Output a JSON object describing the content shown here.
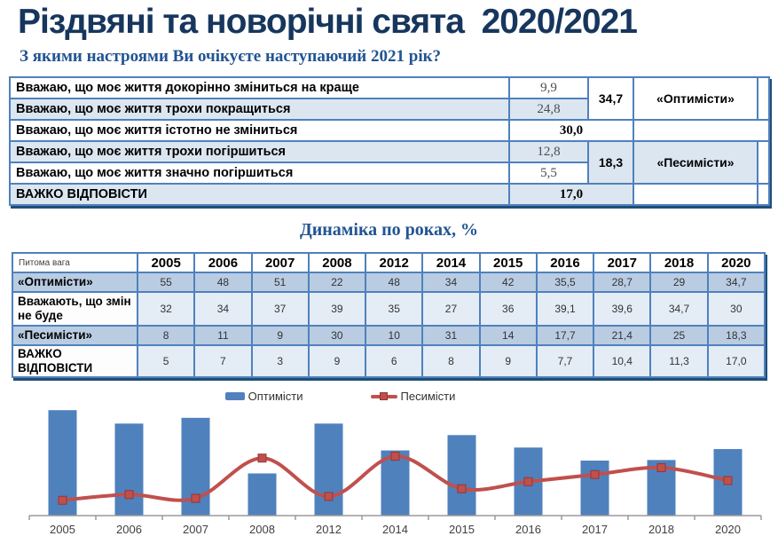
{
  "page": {
    "title": "Різдвяні та новорічні свята  2020/2021",
    "subtitle": "З якими настроями Ви очікуєте наступаючий 2021 рік?"
  },
  "mood_table": {
    "rows": [
      {
        "label": "Вважаю, що моє життя докорінно зміниться на краще",
        "value": "9,9"
      },
      {
        "label": "Вважаю, що моє життя трохи покращиться",
        "value": "24,8"
      },
      {
        "label": "Вважаю, що моє життя істотно не зміниться",
        "value": "30,0"
      },
      {
        "label": "Вважаю, що моє життя трохи погіршиться",
        "value": "12,8"
      },
      {
        "label": "Вважаю, що моє життя значно погіршиться",
        "value": "5,5"
      },
      {
        "label": "ВАЖКО ВІДПОВІСТИ",
        "value": "17,0"
      }
    ],
    "groups": [
      {
        "total": "34,7",
        "name": "«Оптимісти»"
      },
      {
        "total": "18,3",
        "name": "«Песимісти»"
      }
    ]
  },
  "dynamics": {
    "title": "Динаміка по роках, %",
    "corner_label": "Питома вага",
    "years": [
      "2005",
      "2006",
      "2007",
      "2008",
      "2012",
      "2014",
      "2015",
      "2016",
      "2017",
      "2018",
      "2020"
    ],
    "rows": [
      {
        "label": "«Оптимісти»",
        "values": [
          "55",
          "48",
          "51",
          "22",
          "48",
          "34",
          "42",
          "35,5",
          "28,7",
          "29",
          "34,7"
        ]
      },
      {
        "label": "Вважають, що змін не буде",
        "values": [
          "32",
          "34",
          "37",
          "39",
          "35",
          "27",
          "36",
          "39,1",
          "39,6",
          "34,7",
          "30"
        ]
      },
      {
        "label": "«Песимісти»",
        "values": [
          "8",
          "11",
          "9",
          "30",
          "10",
          "31",
          "14",
          "17,7",
          "21,4",
          "25",
          "18,3"
        ]
      },
      {
        "label": "ВАЖКО ВІДПОВІСТИ",
        "values": [
          "5",
          "7",
          "3",
          "9",
          "6",
          "8",
          "9",
          "7,7",
          "10,4",
          "11,3",
          "17,0"
        ]
      }
    ]
  },
  "chart_data": {
    "type": "bar",
    "subtype": "bar-and-line-combo",
    "categories": [
      "2005",
      "2006",
      "2007",
      "2008",
      "2012",
      "2014",
      "2015",
      "2016",
      "2017",
      "2018",
      "2020"
    ],
    "series": [
      {
        "name": "Оптимісти",
        "type": "bar",
        "color": "#4f81bd",
        "values": [
          55,
          48,
          51,
          22,
          48,
          34,
          42,
          35.5,
          28.7,
          29,
          34.7
        ]
      },
      {
        "name": "Песимісти",
        "type": "line",
        "color": "#c0504d",
        "marker": "square",
        "values": [
          8,
          11,
          9,
          30,
          10,
          31,
          14,
          17.7,
          21.4,
          25,
          18.3
        ]
      }
    ],
    "title": "",
    "xlabel": "",
    "ylabel": "",
    "ylim": [
      0,
      60
    ],
    "grid": false,
    "y_axis_visible": false,
    "legend_position": "top-center"
  },
  "colors": {
    "title_navy": "#17365d",
    "heading_blue": "#215493",
    "table_border": "#4f81bd",
    "table_shadow": "#1f4e79",
    "row_light_blue": "#dce6f1",
    "row_medium_blue": "#b9cce2",
    "row_pale_blue": "#e4ecf5",
    "axis_gray": "#9a9a9a"
  }
}
